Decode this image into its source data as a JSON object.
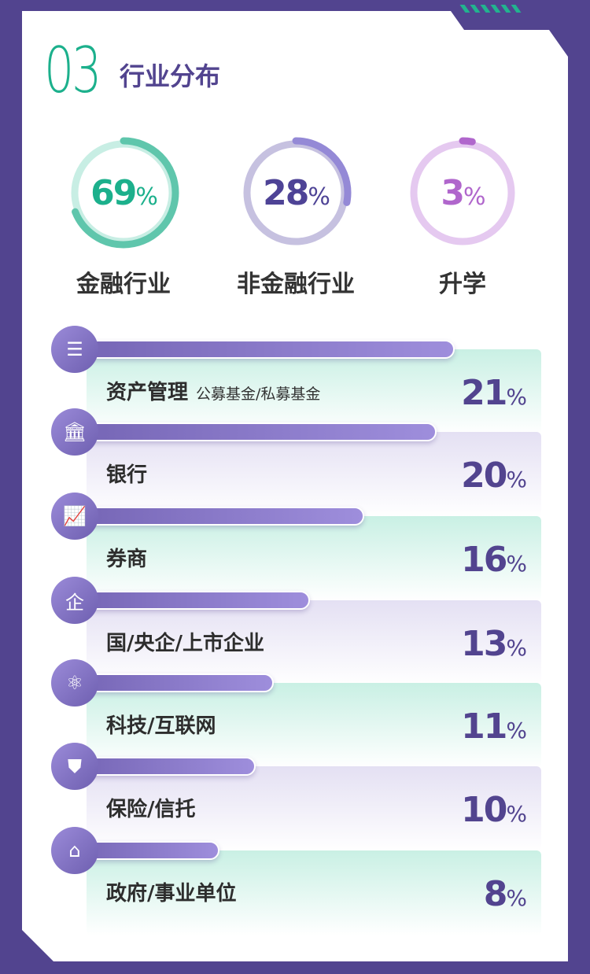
{
  "header": {
    "number": "03",
    "title": "行业分布"
  },
  "colors": {
    "background": "#52448f",
    "accent_green": "#1cb08c",
    "accent_purple": "#52448f",
    "accent_violet": "#b066cc"
  },
  "rings": [
    {
      "value": "69",
      "unit": "%",
      "label": "金融行业",
      "color": "#1cb08c",
      "track": "#c8eee4",
      "arc": "#5fc6ac"
    },
    {
      "value": "28",
      "unit": "%",
      "label": "非金融行业",
      "color": "#4e4396",
      "track": "#c6c1e0",
      "arc": "#9489d6"
    },
    {
      "value": "3",
      "unit": "%",
      "label": "升学",
      "color": "#b066cc",
      "track": "#e5c9f0",
      "arc": "#b066cc"
    }
  ],
  "chart_data": {
    "type": "bar",
    "categories": [
      "资产管理",
      "银行",
      "券商",
      "国/央企/上市企业",
      "科技/互联网",
      "保险/信托",
      "政府/事业单位"
    ],
    "values": [
      21,
      20,
      16,
      13,
      11,
      10,
      8
    ],
    "unit": "%",
    "sublabels": [
      "公募基金/私募基金",
      "",
      "",
      "",
      "",
      "",
      ""
    ],
    "icons": [
      "server-gear-icon",
      "bank-icon",
      "chart-up-icon",
      "enterprise-shield-icon",
      "atom-icon",
      "person-shield-icon",
      "government-building-icon"
    ]
  }
}
